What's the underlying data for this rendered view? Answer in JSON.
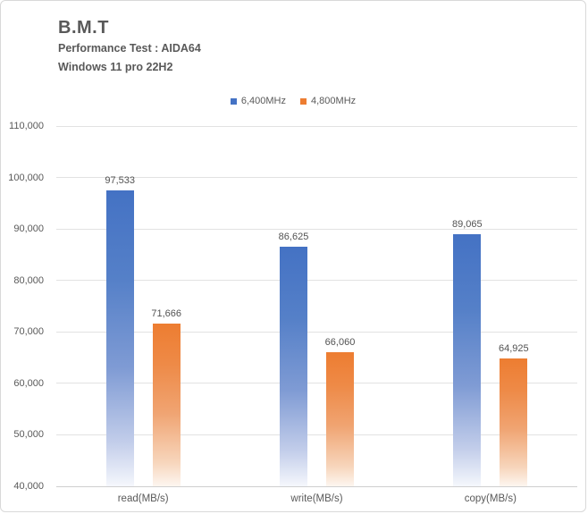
{
  "header": {
    "title": "B.M.T",
    "subtitle_line1": "Performance Test : AIDA64",
    "subtitle_line2": "Windows 11 pro 22H2"
  },
  "chart_data": {
    "type": "bar",
    "title": "B.M.T",
    "subtitle": "Performance Test : AIDA64 — Windows 11 pro 22H2",
    "categories": [
      "read(MB/s)",
      "write(MB/s)",
      "copy(MB/s)"
    ],
    "series": [
      {
        "name": "6,400MHz",
        "color": "#4472C4",
        "gradient": [
          "#4472C4 0%",
          "#5580C8 30%",
          "#7F9BD4 60%",
          "#C2CDEA 85%",
          "#F5F7FC 100%"
        ],
        "values": [
          97533,
          86625,
          89065
        ],
        "value_labels": [
          "97,533",
          "86,625",
          "89,065"
        ]
      },
      {
        "name": "4,800MHz",
        "color": "#ED7D31",
        "gradient": [
          "#ED7D31 0%",
          "#EE8A47 25%",
          "#F0A472 55%",
          "#F7D5BB 85%",
          "#FDF6F0 100%"
        ],
        "values": [
          71666,
          66060,
          64925
        ],
        "value_labels": [
          "71,666",
          "66,060",
          "64,925"
        ]
      }
    ],
    "ylim": [
      40000,
      110000
    ],
    "ytick_step": 10000,
    "ytick_labels": [
      "40,000",
      "50,000",
      "60,000",
      "70,000",
      "80,000",
      "90,000",
      "100,000",
      "110,000"
    ],
    "grid": true,
    "legend_position": "top-center",
    "xlabel": "",
    "ylabel": ""
  },
  "style": {
    "grid_color": "#E2E2E2",
    "axis_color": "#CFCFCF",
    "text_color": "#595959",
    "value_label_color": "#525252",
    "frame_border": "#D9D9D9",
    "background": "#FFFFFF"
  }
}
